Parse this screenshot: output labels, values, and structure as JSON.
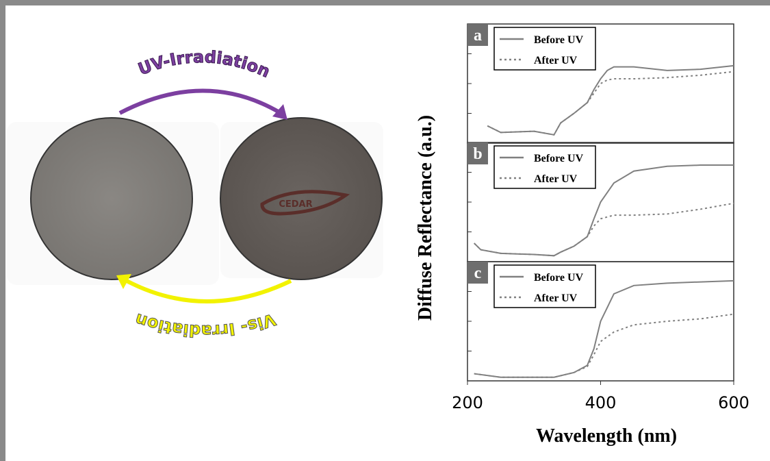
{
  "figure": {
    "uv_label": "UV-Irradiation",
    "vis_label": "Vis- Irradiation",
    "disc_logo": "CEDAR",
    "ylabel": "Diffuse Reflectance (a.u.)",
    "xlabel": "Wavelength (nm)"
  },
  "chart_data": [
    {
      "type": "line",
      "title": "a",
      "xlim": [
        200,
        600
      ],
      "ylim": [
        0,
        1
      ],
      "x": [
        230,
        250,
        300,
        330,
        340,
        360,
        380,
        390,
        400,
        410,
        420,
        450,
        500,
        550,
        600
      ],
      "series": [
        {
          "name": "Before UV",
          "color": "#808080",
          "style": "solid",
          "values": [
            0.145,
            0.09,
            0.1,
            0.07,
            0.17,
            0.25,
            0.34,
            0.45,
            0.54,
            0.61,
            0.64,
            0.64,
            0.61,
            0.62,
            0.65
          ]
        },
        {
          "name": "After UV",
          "color": "#808080",
          "style": "dotted",
          "values": [
            0.145,
            0.09,
            0.1,
            0.07,
            0.17,
            0.25,
            0.34,
            0.42,
            0.5,
            0.53,
            0.54,
            0.54,
            0.55,
            0.57,
            0.6
          ]
        }
      ]
    },
    {
      "type": "line",
      "title": "b",
      "xlim": [
        200,
        600
      ],
      "ylim": [
        0,
        1
      ],
      "x": [
        210,
        220,
        250,
        300,
        330,
        340,
        360,
        380,
        390,
        400,
        420,
        450,
        500,
        550,
        600
      ],
      "series": [
        {
          "name": "Before UV",
          "color": "#808080",
          "style": "solid",
          "values": [
            0.155,
            0.1,
            0.07,
            0.06,
            0.05,
            0.08,
            0.13,
            0.21,
            0.36,
            0.5,
            0.66,
            0.76,
            0.8,
            0.81,
            0.81
          ]
        },
        {
          "name": "After UV",
          "color": "#808080",
          "style": "dotted",
          "values": [
            0.155,
            0.1,
            0.07,
            0.06,
            0.05,
            0.08,
            0.13,
            0.21,
            0.3,
            0.36,
            0.39,
            0.39,
            0.4,
            0.44,
            0.49
          ]
        }
      ]
    },
    {
      "type": "line",
      "title": "c",
      "xlim": [
        200,
        600
      ],
      "ylim": [
        0,
        1
      ],
      "xticks": [
        200,
        400,
        600
      ],
      "x": [
        210,
        250,
        300,
        330,
        360,
        380,
        390,
        400,
        420,
        450,
        500,
        550,
        600
      ],
      "series": [
        {
          "name": "Before UV",
          "color": "#808080",
          "style": "solid",
          "values": [
            0.06,
            0.03,
            0.03,
            0.03,
            0.07,
            0.13,
            0.27,
            0.5,
            0.73,
            0.8,
            0.82,
            0.83,
            0.84
          ]
        },
        {
          "name": "After UV",
          "color": "#808080",
          "style": "dotted",
          "values": [
            0.06,
            0.03,
            0.03,
            0.03,
            0.07,
            0.12,
            0.22,
            0.33,
            0.41,
            0.47,
            0.5,
            0.52,
            0.56
          ]
        }
      ]
    }
  ]
}
